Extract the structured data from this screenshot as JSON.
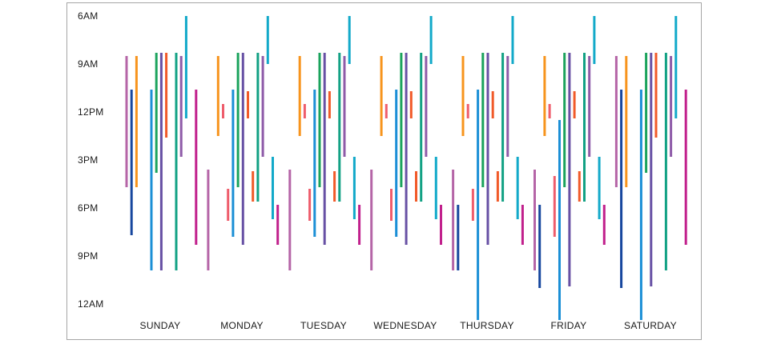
{
  "chart_data": {
    "type": "range-bar",
    "title": "",
    "xlabel": "",
    "ylabel": "",
    "y_axis": {
      "direction": "top-to-bottom",
      "range_hours": [
        6,
        24
      ],
      "ticks": [
        {
          "hour": 6,
          "label": "6AM"
        },
        {
          "hour": 9,
          "label": "9AM"
        },
        {
          "hour": 12,
          "label": "12PM"
        },
        {
          "hour": 15,
          "label": "3PM"
        },
        {
          "hour": 18,
          "label": "6PM"
        },
        {
          "hour": 21,
          "label": "9PM"
        },
        {
          "hour": 24,
          "label": "12AM"
        }
      ]
    },
    "grid": false,
    "legend": "none",
    "days": [
      "SUNDAY",
      "MONDAY",
      "TUESDAY",
      "WEDNESDAY",
      "THURSDAY",
      "FRIDAY",
      "SATURDAY"
    ],
    "series": [
      {
        "color": "#b565a7",
        "ranges": [
          [
            8.5,
            16.7
          ],
          [
            15.6,
            21.9
          ],
          [
            15.6,
            21.9
          ],
          [
            15.6,
            21.9
          ],
          [
            15.6,
            21.9
          ],
          [
            15.6,
            21.9
          ],
          [
            8.5,
            16.7
          ]
        ]
      },
      {
        "color": "#17479e",
        "ranges": [
          [
            10.6,
            19.7
          ],
          null,
          null,
          null,
          [
            17.8,
            21.9
          ],
          [
            17.8,
            23.0
          ],
          [
            10.6,
            23.0
          ]
        ]
      },
      {
        "color": "#f7941d",
        "ranges": [
          [
            8.5,
            16.7
          ],
          [
            8.5,
            13.5
          ],
          [
            8.5,
            13.5
          ],
          [
            8.5,
            13.5
          ],
          [
            8.5,
            13.5
          ],
          [
            8.5,
            13.5
          ],
          [
            8.5,
            16.7
          ]
        ]
      },
      {
        "color": "#ee5d6c",
        "ranges": [
          null,
          [
            11.5,
            12.4
          ],
          [
            11.5,
            12.4
          ],
          [
            11.5,
            12.4
          ],
          [
            11.5,
            12.4
          ],
          [
            11.5,
            12.4
          ],
          null
        ]
      },
      {
        "color": "#ee5d6c",
        "ranges": [
          null,
          [
            16.8,
            18.8
          ],
          [
            16.8,
            18.8
          ],
          [
            16.8,
            18.8
          ],
          [
            16.8,
            18.8
          ],
          [
            16.0,
            19.8
          ],
          null
        ]
      },
      {
        "color": "#1b8fd6",
        "ranges": [
          [
            10.6,
            21.9
          ],
          [
            10.6,
            19.8
          ],
          [
            10.6,
            19.8
          ],
          [
            10.6,
            19.8
          ],
          [
            10.6,
            25.0
          ],
          [
            12.5,
            25.0
          ],
          [
            10.6,
            25.0
          ]
        ]
      },
      {
        "color": "#1ba35c",
        "ranges": [
          [
            8.3,
            15.8
          ],
          [
            8.3,
            16.7
          ],
          [
            8.3,
            16.7
          ],
          [
            8.3,
            16.7
          ],
          [
            8.3,
            16.7
          ],
          [
            8.3,
            16.7
          ],
          [
            8.3,
            15.8
          ]
        ]
      },
      {
        "color": "#6750a4",
        "ranges": [
          [
            8.3,
            21.9
          ],
          [
            8.3,
            20.3
          ],
          [
            8.3,
            20.3
          ],
          [
            8.3,
            20.3
          ],
          [
            8.3,
            20.3
          ],
          [
            8.3,
            22.9
          ],
          [
            8.3,
            22.9
          ]
        ]
      },
      {
        "color": "#f15a29",
        "ranges": [
          [
            8.3,
            13.6
          ],
          [
            10.7,
            12.4
          ],
          [
            10.7,
            12.4
          ],
          [
            10.7,
            12.4
          ],
          [
            10.7,
            12.4
          ],
          [
            10.7,
            12.4
          ],
          [
            8.3,
            13.6
          ]
        ]
      },
      {
        "color": "#f15a29",
        "ranges": [
          null,
          [
            15.7,
            17.6
          ],
          [
            15.7,
            17.6
          ],
          [
            15.7,
            17.6
          ],
          [
            15.7,
            17.6
          ],
          [
            15.7,
            17.6
          ],
          null
        ]
      },
      {
        "color": "#12a184",
        "ranges": [
          [
            8.3,
            21.9
          ],
          [
            8.3,
            17.6
          ],
          [
            8.3,
            17.6
          ],
          [
            8.3,
            17.6
          ],
          [
            8.3,
            17.6
          ],
          [
            8.3,
            17.6
          ],
          [
            8.3,
            21.9
          ]
        ]
      },
      {
        "color": "#8e5ba8",
        "ranges": [
          [
            8.5,
            14.8
          ],
          [
            8.5,
            14.8
          ],
          [
            8.5,
            14.8
          ],
          [
            8.5,
            14.8
          ],
          [
            8.5,
            14.8
          ],
          [
            8.5,
            14.8
          ],
          [
            8.5,
            14.8
          ]
        ]
      },
      {
        "color": "#12a9c9",
        "ranges": [
          [
            6.0,
            12.4
          ],
          [
            6.0,
            9.0
          ],
          [
            6.0,
            9.0
          ],
          [
            6.0,
            9.0
          ],
          [
            6.0,
            9.0
          ],
          [
            6.0,
            9.0
          ],
          [
            6.0,
            12.4
          ]
        ]
      },
      {
        "color": "#12a9c9",
        "ranges": [
          null,
          [
            14.8,
            18.7
          ],
          [
            14.8,
            18.7
          ],
          [
            14.8,
            18.7
          ],
          [
            14.8,
            18.7
          ],
          [
            14.8,
            18.7
          ],
          null
        ]
      },
      {
        "color": "#c1208c",
        "ranges": [
          [
            10.6,
            20.3
          ],
          [
            17.8,
            20.3
          ],
          [
            17.8,
            20.3
          ],
          [
            17.8,
            20.3
          ],
          [
            17.8,
            20.3
          ],
          [
            17.8,
            20.3
          ],
          [
            10.6,
            20.3
          ]
        ]
      }
    ]
  }
}
